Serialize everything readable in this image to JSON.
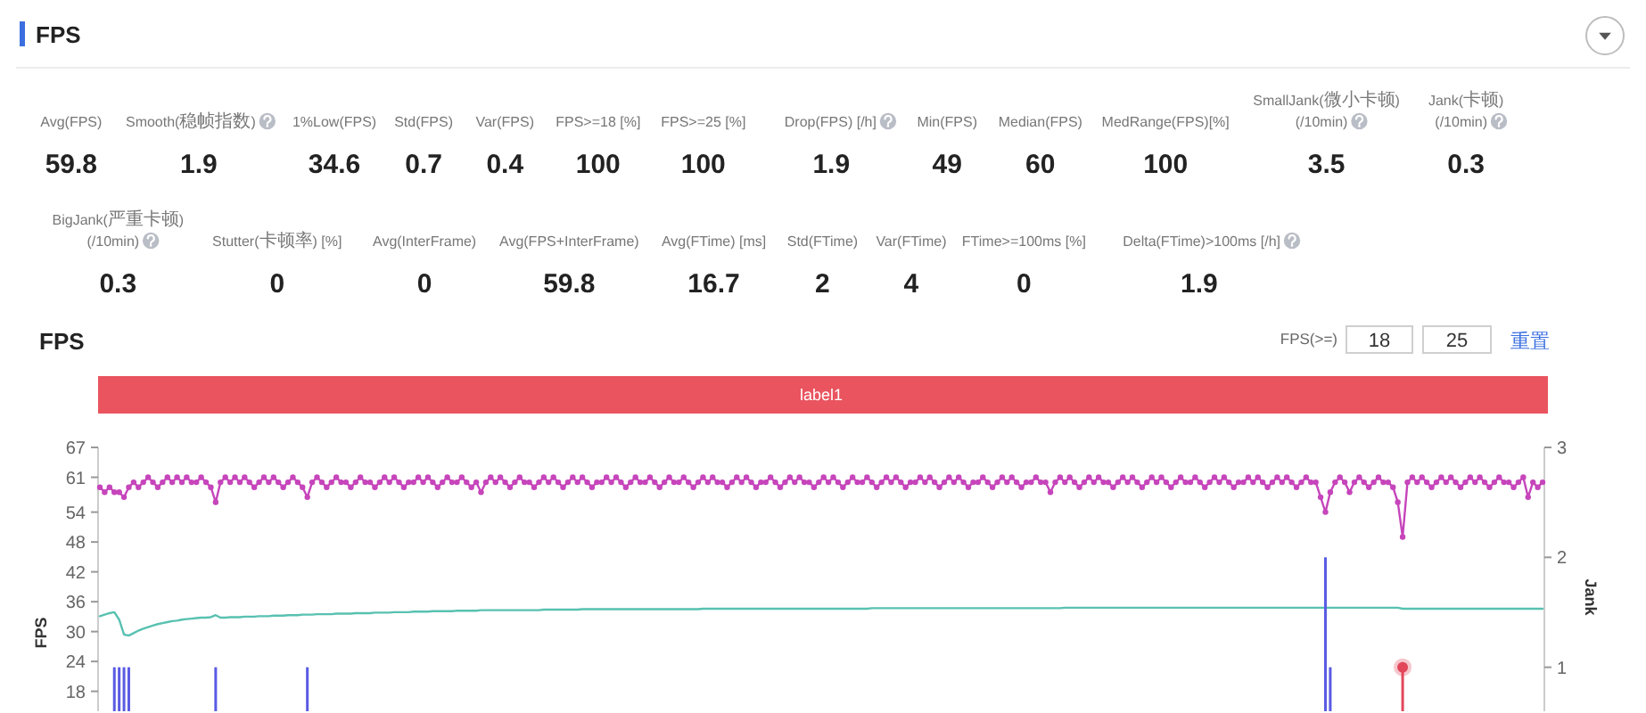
{
  "chart_data": [
    {
      "type": "other",
      "title": "FPS",
      "categories": [
        "Avg(FPS)",
        "Smooth(稳帧指数)",
        "1%Low(FPS)",
        "Std(FPS)",
        "Var(FPS)",
        "FPS>=18 [%]",
        "FPS>=25 [%]",
        "Drop(FPS) [/h]",
        "Min(FPS)",
        "Median(FPS)",
        "MedRange(FPS)[%]",
        "SmallJank(微小卡顿)\n(/10min)",
        "Jank(卡顿)\n(/10min)",
        "BigJank(严重卡顿)\n(/10min)",
        "Stutter(卡顿率) [%]",
        "Avg(InterFrame)",
        "Avg(FPS+InterFrame)",
        "Avg(FTime) [ms]",
        "Std(FTime)",
        "Var(FTime)",
        "FTime>=100ms [%]",
        "Delta(FTime)>100ms [/h]"
      ],
      "values": [
        59.8,
        1.9,
        34.6,
        0.7,
        0.4,
        100,
        100,
        1.9,
        49,
        60,
        100,
        3.5,
        0.3,
        0.3,
        0,
        0,
        59.8,
        16.7,
        2,
        4,
        0,
        1.9
      ],
      "data_labels": true
    },
    {
      "type": "line",
      "title": "FPS",
      "ylabel": "FPS",
      "y2label": "Jank",
      "annotations": [
        "FPS(>=)",
        "18",
        "25",
        "重置",
        "label1"
      ],
      "categories": [
        null,
        null,
        null,
        null,
        null,
        null,
        null,
        null,
        null,
        null,
        null,
        null,
        null,
        null,
        null,
        null,
        null,
        null,
        null,
        null,
        null,
        null,
        null,
        null,
        null,
        null,
        null,
        null,
        null,
        null,
        null,
        null,
        null,
        null,
        null,
        null,
        null,
        null,
        null,
        null,
        null,
        null,
        null,
        null,
        null,
        null,
        null,
        null,
        null,
        null,
        null,
        null,
        null,
        null,
        null,
        null,
        null,
        null,
        null,
        null,
        null,
        null,
        null,
        null,
        null,
        null,
        null,
        null,
        null,
        null,
        null,
        null,
        null,
        null,
        null,
        null,
        null,
        null,
        null,
        null,
        null,
        null,
        null,
        null,
        null,
        null,
        null,
        null,
        null,
        null,
        null,
        null,
        null,
        null,
        null,
        null,
        null,
        null,
        null,
        null,
        null,
        null,
        null,
        null,
        null,
        null,
        null,
        null,
        null,
        null,
        null,
        null,
        null,
        null,
        null,
        null,
        null,
        null,
        null,
        null,
        null,
        null,
        null,
        null,
        null,
        null,
        null,
        null,
        null,
        null,
        null,
        null,
        null,
        null,
        null,
        null,
        null,
        null,
        null,
        null,
        null,
        null,
        null,
        null,
        null,
        null,
        null,
        null,
        null,
        null,
        null,
        null,
        null,
        null,
        null,
        null,
        null,
        null,
        null,
        null,
        null,
        null,
        null,
        null,
        null,
        null,
        null,
        null,
        null,
        null,
        null,
        null,
        null,
        null,
        null,
        null,
        null,
        null,
        null,
        null,
        null,
        null,
        null,
        null,
        null,
        null,
        null,
        null,
        null,
        null,
        null,
        null,
        null,
        null,
        null,
        null,
        null,
        null,
        null,
        null,
        null,
        null,
        null,
        null,
        null,
        null,
        null,
        null,
        null,
        null,
        null,
        null,
        null,
        null,
        null,
        null,
        null,
        null,
        null,
        null,
        null,
        null,
        null,
        null,
        null,
        null,
        null,
        null,
        null,
        null,
        null,
        null,
        null,
        null,
        null,
        null,
        null,
        null,
        null,
        null,
        null,
        null,
        null,
        null,
        null,
        null,
        null,
        null,
        null,
        null,
        null,
        null,
        null,
        null,
        null,
        null,
        null,
        null,
        null,
        null,
        null,
        null,
        null,
        null,
        null,
        null,
        null,
        null,
        null,
        null,
        null,
        null,
        null,
        null,
        null,
        null,
        null,
        null,
        null,
        null,
        null,
        null,
        null,
        null,
        null,
        null,
        null,
        null,
        null,
        null,
        null,
        null,
        null,
        null,
        null,
        null,
        null,
        null,
        null,
        null
      ],
      "ylim": [
        14,
        67
      ],
      "yticks": [
        18,
        24,
        30,
        36,
        42,
        48,
        54,
        61,
        67
      ],
      "y2lim": [
        0.6,
        3
      ],
      "y2ticks": [
        1,
        2,
        3
      ],
      "tick_labels": "y",
      "series": [
        {
          "type": "line",
          "color": "#c645bb",
          "marker": "circle",
          "values": [
            59,
            58,
            59,
            58,
            58,
            57,
            59,
            60,
            59,
            60,
            61,
            60,
            59,
            60,
            61,
            60,
            61,
            60,
            61,
            60,
            60,
            61,
            60,
            59,
            56,
            60,
            61,
            60,
            61,
            60,
            61,
            60,
            59,
            60,
            61,
            60,
            61,
            60,
            59,
            60,
            61,
            60,
            59,
            57,
            60,
            61,
            60,
            59,
            60,
            61,
            60,
            60,
            59,
            60,
            61,
            60,
            60,
            59,
            60,
            61,
            60,
            61,
            60,
            59,
            60,
            60,
            61,
            60,
            61,
            60,
            59,
            60,
            61,
            60,
            60,
            61,
            60,
            59,
            60,
            58,
            60,
            61,
            60,
            61,
            60,
            59,
            60,
            61,
            60,
            60,
            59,
            60,
            61,
            60,
            61,
            60,
            59,
            60,
            61,
            60,
            61,
            60,
            59,
            60,
            60,
            61,
            60,
            61,
            60,
            59,
            60,
            61,
            60,
            60,
            61,
            60,
            59,
            60,
            61,
            60,
            60,
            61,
            60,
            59,
            60,
            61,
            60,
            61,
            60,
            60,
            59,
            60,
            61,
            60,
            61,
            60,
            59,
            60,
            60,
            61,
            60,
            59,
            60,
            61,
            60,
            61,
            60,
            60,
            59,
            60,
            61,
            60,
            61,
            60,
            59,
            60,
            61,
            60,
            60,
            61,
            60,
            59,
            60,
            61,
            60,
            61,
            60,
            59,
            60,
            60,
            61,
            60,
            61,
            60,
            59,
            60,
            61,
            60,
            61,
            60,
            59,
            60,
            60,
            61,
            60,
            59,
            60,
            61,
            60,
            61,
            60,
            59,
            60,
            60,
            61,
            60,
            60,
            58,
            60,
            61,
            60,
            61,
            60,
            59,
            60,
            61,
            60,
            61,
            60,
            60,
            59,
            60,
            61,
            60,
            61,
            60,
            59,
            60,
            61,
            60,
            61,
            60,
            59,
            60,
            61,
            60,
            60,
            61,
            60,
            59,
            60,
            61,
            60,
            61,
            60,
            59,
            60,
            60,
            61,
            60,
            61,
            60,
            59,
            60,
            61,
            60,
            61,
            60,
            59,
            60,
            61,
            60,
            60,
            57,
            54,
            58,
            60,
            61,
            60,
            58,
            60,
            61,
            60,
            59,
            60,
            61,
            60,
            60,
            59,
            56,
            49,
            60,
            61,
            60,
            61,
            60,
            59,
            60,
            61,
            60,
            61,
            60,
            59,
            60,
            61,
            60,
            61,
            60,
            59,
            60,
            61,
            60,
            60,
            59,
            60,
            61,
            57,
            60,
            59,
            60
          ]
        },
        {
          "type": "line",
          "color": "#58c1b1",
          "values": [
            33.1,
            33.4,
            33.7,
            33.9,
            32.4,
            29.4,
            29.2,
            29.7,
            30.2,
            30.6,
            30.9,
            31.2,
            31.5,
            31.7,
            31.9,
            32.1,
            32.2,
            32.4,
            32.5,
            32.6,
            32.7,
            32.8,
            32.8,
            32.9,
            33.3,
            32.8,
            32.8,
            32.9,
            32.9,
            32.9,
            33.0,
            33.0,
            33.0,
            33.1,
            33.1,
            33.1,
            33.2,
            33.2,
            33.2,
            33.3,
            33.3,
            33.3,
            33.4,
            33.4,
            33.4,
            33.5,
            33.5,
            33.5,
            33.5,
            33.6,
            33.6,
            33.6,
            33.6,
            33.7,
            33.7,
            33.7,
            33.7,
            33.8,
            33.8,
            33.8,
            33.8,
            33.9,
            33.9,
            33.9,
            33.9,
            34.0,
            34.0,
            34.0,
            34.0,
            34.1,
            34.1,
            34.1,
            34.1,
            34.1,
            34.2,
            34.2,
            34.2,
            34.2,
            34.2,
            34.3,
            34.3,
            34.3,
            34.3,
            34.3,
            34.3,
            34.3,
            34.3,
            34.3,
            34.3,
            34.3,
            34.3,
            34.3,
            34.4,
            34.4,
            34.4,
            34.4,
            34.4,
            34.4,
            34.4,
            34.4,
            34.5,
            34.5,
            34.5,
            34.5,
            34.5,
            34.5,
            34.5,
            34.5,
            34.5,
            34.5,
            34.5,
            34.5,
            34.5,
            34.5,
            34.5,
            34.5,
            34.5,
            34.5,
            34.5,
            34.5,
            34.5,
            34.5,
            34.5,
            34.5,
            34.5,
            34.6,
            34.6,
            34.6,
            34.6,
            34.6,
            34.6,
            34.6,
            34.6,
            34.6,
            34.6,
            34.6,
            34.6,
            34.6,
            34.6,
            34.6,
            34.6,
            34.6,
            34.6,
            34.6,
            34.6,
            34.6,
            34.6,
            34.6,
            34.6,
            34.6,
            34.6,
            34.6,
            34.6,
            34.6,
            34.6,
            34.6,
            34.6,
            34.6,
            34.6,
            34.6,
            34.7,
            34.7,
            34.7,
            34.7,
            34.7,
            34.7,
            34.7,
            34.7,
            34.7,
            34.7,
            34.7,
            34.7,
            34.7,
            34.7,
            34.7,
            34.7,
            34.7,
            34.7,
            34.7,
            34.7,
            34.7,
            34.7,
            34.7,
            34.7,
            34.7,
            34.7,
            34.7,
            34.7,
            34.7,
            34.7,
            34.7,
            34.7,
            34.7,
            34.7,
            34.7,
            34.7,
            34.7,
            34.7,
            34.7,
            34.7,
            34.8,
            34.8,
            34.8,
            34.8,
            34.8,
            34.8,
            34.8,
            34.8,
            34.8,
            34.8,
            34.8,
            34.8,
            34.8,
            34.8,
            34.8,
            34.8,
            34.8,
            34.8,
            34.8,
            34.8,
            34.8,
            34.8,
            34.8,
            34.8,
            34.8,
            34.8,
            34.8,
            34.8,
            34.8,
            34.8,
            34.8,
            34.8,
            34.8,
            34.8,
            34.8,
            34.8,
            34.8,
            34.8,
            34.8,
            34.8,
            34.8,
            34.8,
            34.8,
            34.8,
            34.8,
            34.8,
            34.8,
            34.8,
            34.8,
            34.8,
            34.8,
            34.8,
            34.8,
            34.8,
            34.8,
            34.8,
            34.8,
            34.8,
            34.8,
            34.8,
            34.8,
            34.8,
            34.8,
            34.8,
            34.8,
            34.8,
            34.8,
            34.8,
            34.8,
            34.8,
            34.6,
            34.6,
            34.6,
            34.6,
            34.6,
            34.6,
            34.6,
            34.6,
            34.6,
            34.6,
            34.6,
            34.6,
            34.6,
            34.6,
            34.6,
            34.6,
            34.6,
            34.6,
            34.6,
            34.6,
            34.6,
            34.6,
            34.6,
            34.6,
            34.6,
            34.6,
            34.6,
            34.6,
            34.6,
            34.6
          ]
        },
        {
          "type": "bar",
          "axis": "y2",
          "color": "#5a5be3",
          "values": [
            null,
            null,
            null,
            1,
            1,
            1,
            1,
            null,
            null,
            null,
            null,
            null,
            null,
            null,
            null,
            null,
            null,
            null,
            null,
            null,
            null,
            null,
            null,
            null,
            1,
            null,
            null,
            null,
            null,
            null,
            null,
            null,
            null,
            null,
            null,
            null,
            null,
            null,
            null,
            null,
            null,
            null,
            null,
            1,
            null,
            null,
            null,
            null,
            null,
            null,
            null,
            null,
            null,
            null,
            null,
            null,
            null,
            null,
            null,
            null,
            null,
            null,
            null,
            null,
            null,
            null,
            null,
            null,
            null,
            null,
            null,
            null,
            null,
            null,
            null,
            null,
            null,
            null,
            null,
            null,
            null,
            null,
            null,
            null,
            null,
            null,
            null,
            null,
            null,
            null,
            null,
            null,
            null,
            null,
            null,
            null,
            null,
            null,
            null,
            null,
            null,
            null,
            null,
            null,
            null,
            null,
            null,
            null,
            null,
            null,
            null,
            null,
            null,
            null,
            null,
            null,
            null,
            null,
            null,
            null,
            null,
            null,
            null,
            null,
            null,
            null,
            null,
            null,
            null,
            null,
            null,
            null,
            null,
            null,
            null,
            null,
            null,
            null,
            null,
            null,
            null,
            null,
            null,
            null,
            null,
            null,
            null,
            null,
            null,
            null,
            null,
            null,
            null,
            null,
            null,
            null,
            null,
            null,
            null,
            null,
            null,
            null,
            null,
            null,
            null,
            null,
            null,
            null,
            null,
            null,
            null,
            null,
            null,
            null,
            null,
            null,
            null,
            null,
            null,
            null,
            null,
            null,
            null,
            null,
            null,
            null,
            null,
            null,
            null,
            null,
            null,
            null,
            null,
            null,
            null,
            null,
            null,
            null,
            null,
            null,
            null,
            null,
            null,
            null,
            null,
            null,
            null,
            null,
            null,
            null,
            null,
            null,
            null,
            null,
            null,
            null,
            null,
            null,
            null,
            null,
            null,
            null,
            null,
            null,
            null,
            null,
            null,
            null,
            null,
            null,
            null,
            null,
            null,
            null,
            null,
            null,
            null,
            null,
            null,
            null,
            null,
            null,
            null,
            null,
            null,
            null,
            null,
            null,
            null,
            null,
            null,
            null,
            null,
            null,
            2,
            1,
            null,
            null,
            null,
            null,
            null,
            null,
            null,
            null,
            null,
            null,
            null,
            null,
            null,
            null,
            null,
            null,
            null,
            null,
            null,
            null,
            null,
            null,
            null,
            null,
            null,
            null,
            null,
            null,
            null,
            null,
            null,
            null,
            null,
            null,
            null,
            null,
            null,
            null,
            null,
            null,
            null,
            null,
            null,
            null
          ]
        },
        {
          "type": "lollipop",
          "axis": "y2",
          "color": "#e2475a",
          "values": [
            null,
            null,
            null,
            null,
            null,
            null,
            null,
            null,
            null,
            null,
            null,
            null,
            null,
            null,
            null,
            null,
            null,
            null,
            null,
            null,
            null,
            null,
            null,
            null,
            null,
            null,
            null,
            null,
            null,
            null,
            null,
            null,
            null,
            null,
            null,
            null,
            null,
            null,
            null,
            null,
            null,
            null,
            null,
            null,
            null,
            null,
            null,
            null,
            null,
            null,
            null,
            null,
            null,
            null,
            null,
            null,
            null,
            null,
            null,
            null,
            null,
            null,
            null,
            null,
            null,
            null,
            null,
            null,
            null,
            null,
            null,
            null,
            null,
            null,
            null,
            null,
            null,
            null,
            null,
            null,
            null,
            null,
            null,
            null,
            null,
            null,
            null,
            null,
            null,
            null,
            null,
            null,
            null,
            null,
            null,
            null,
            null,
            null,
            null,
            null,
            null,
            null,
            null,
            null,
            null,
            null,
            null,
            null,
            null,
            null,
            null,
            null,
            null,
            null,
            null,
            null,
            null,
            null,
            null,
            null,
            null,
            null,
            null,
            null,
            null,
            null,
            null,
            null,
            null,
            null,
            null,
            null,
            null,
            null,
            null,
            null,
            null,
            null,
            null,
            null,
            null,
            null,
            null,
            null,
            null,
            null,
            null,
            null,
            null,
            null,
            null,
            null,
            null,
            null,
            null,
            null,
            null,
            null,
            null,
            null,
            null,
            null,
            null,
            null,
            null,
            null,
            null,
            null,
            null,
            null,
            null,
            null,
            null,
            null,
            null,
            null,
            null,
            null,
            null,
            null,
            null,
            null,
            null,
            null,
            null,
            null,
            null,
            null,
            null,
            null,
            null,
            null,
            null,
            null,
            null,
            null,
            null,
            null,
            null,
            null,
            null,
            null,
            null,
            null,
            null,
            null,
            null,
            null,
            null,
            null,
            null,
            null,
            null,
            null,
            null,
            null,
            null,
            null,
            null,
            null,
            null,
            null,
            null,
            null,
            null,
            null,
            null,
            null,
            null,
            null,
            null,
            null,
            null,
            null,
            null,
            null,
            null,
            null,
            null,
            null,
            null,
            null,
            null,
            null,
            null,
            null,
            null,
            null,
            null,
            null,
            null,
            null,
            null,
            null,
            null,
            null,
            null,
            null,
            null,
            null,
            null,
            null,
            null,
            null,
            null,
            null,
            null,
            null,
            null,
            null,
            1,
            null,
            null,
            null,
            null,
            null,
            null,
            null,
            null,
            null,
            null,
            null,
            null,
            null,
            null,
            null,
            null,
            null,
            null,
            null,
            null,
            null,
            null,
            null,
            null,
            null,
            null,
            null,
            null,
            null
          ]
        }
      ]
    }
  ]
}
